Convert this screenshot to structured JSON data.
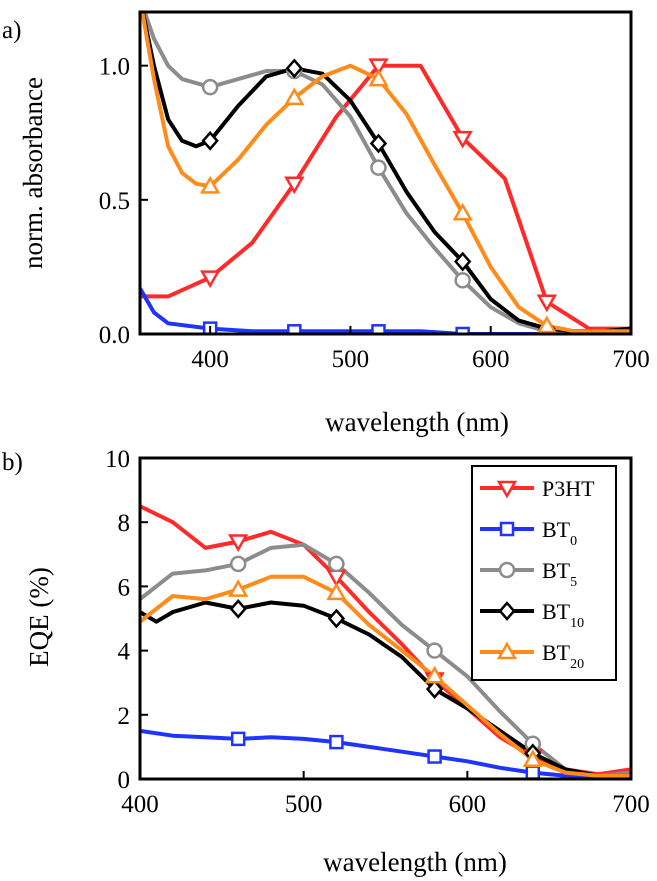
{
  "chart_data": [
    {
      "panel": "a)",
      "type": "line",
      "xlabel": "wavelength (nm)",
      "ylabel": "norm. absorbance",
      "xlim": [
        350,
        700
      ],
      "ylim": [
        0,
        1.2
      ],
      "xticks": [
        400,
        500,
        600,
        700
      ],
      "yticks": [
        0.0,
        0.5,
        1.0
      ],
      "ytick_labels": [
        "0.0",
        "0.5",
        "1.0"
      ],
      "series": [
        {
          "name": "P3HT",
          "color": "#ff2a2a",
          "marker": "triangle-down",
          "x": [
            350,
            370,
            400,
            430,
            460,
            490,
            520,
            550,
            580,
            610,
            640,
            670,
            700
          ],
          "y": [
            0.14,
            0.14,
            0.21,
            0.34,
            0.56,
            0.81,
            1.0,
            1.0,
            0.73,
            0.58,
            0.12,
            0.02,
            0.02
          ]
        },
        {
          "name": "BT0",
          "color": "#1f35ff",
          "marker": "square",
          "x": [
            350,
            360,
            370,
            400,
            430,
            460,
            490,
            520,
            550,
            580,
            610,
            640,
            670,
            700
          ],
          "y": [
            0.17,
            0.08,
            0.04,
            0.02,
            0.01,
            0.01,
            0.01,
            0.01,
            0.01,
            0.0,
            0.0,
            0.0,
            0.01,
            0.01
          ]
        },
        {
          "name": "BT5",
          "color": "#8c8c8c",
          "marker": "circle",
          "x": [
            350,
            360,
            370,
            380,
            400,
            420,
            440,
            460,
            480,
            500,
            520,
            540,
            560,
            580,
            600,
            620,
            640,
            660,
            680,
            700
          ],
          "y": [
            1.25,
            1.1,
            1.0,
            0.95,
            0.92,
            0.95,
            0.98,
            0.98,
            0.93,
            0.81,
            0.62,
            0.45,
            0.32,
            0.2,
            0.1,
            0.04,
            0.01,
            0.01,
            0.01,
            0.02
          ]
        },
        {
          "name": "BT10",
          "color": "#000000",
          "marker": "diamond",
          "x": [
            350,
            360,
            370,
            380,
            390,
            400,
            420,
            440,
            460,
            480,
            500,
            520,
            540,
            560,
            580,
            600,
            620,
            640,
            660,
            680,
            700
          ],
          "y": [
            1.25,
            1.0,
            0.8,
            0.72,
            0.7,
            0.72,
            0.85,
            0.96,
            0.99,
            0.97,
            0.87,
            0.71,
            0.53,
            0.38,
            0.27,
            0.13,
            0.05,
            0.02,
            0.01,
            0.01,
            0.02
          ]
        },
        {
          "name": "BT20",
          "color": "#ff8c1a",
          "marker": "triangle-up",
          "x": [
            350,
            360,
            370,
            380,
            390,
            400,
            420,
            440,
            460,
            480,
            500,
            520,
            540,
            560,
            580,
            600,
            620,
            640,
            660,
            680,
            700
          ],
          "y": [
            1.25,
            0.95,
            0.7,
            0.6,
            0.56,
            0.55,
            0.65,
            0.78,
            0.88,
            0.96,
            1.0,
            0.95,
            0.82,
            0.63,
            0.45,
            0.25,
            0.1,
            0.03,
            0.01,
            0.01,
            0.01
          ]
        }
      ]
    },
    {
      "panel": "b)",
      "type": "line",
      "xlabel": "wavelength (nm)",
      "ylabel": "EQE (%)",
      "xlim": [
        400,
        700
      ],
      "ylim": [
        0,
        10
      ],
      "xticks": [
        400,
        500,
        600,
        700
      ],
      "yticks": [
        0,
        2,
        4,
        6,
        8,
        10
      ],
      "legend": "top-right",
      "series": [
        {
          "name": "P3HT",
          "color": "#ff2a2a",
          "marker": "triangle-down",
          "x": [
            400,
            420,
            440,
            460,
            480,
            500,
            520,
            540,
            560,
            580,
            600,
            620,
            640,
            660,
            680,
            700
          ],
          "y": [
            8.5,
            8.0,
            7.2,
            7.4,
            7.7,
            7.3,
            6.3,
            5.2,
            4.2,
            3.1,
            2.2,
            1.3,
            0.7,
            0.3,
            0.15,
            0.3
          ]
        },
        {
          "name": "BT0",
          "color": "#1f35ff",
          "marker": "square",
          "x": [
            400,
            420,
            440,
            460,
            480,
            500,
            520,
            540,
            560,
            580,
            600,
            620,
            640,
            660,
            680,
            700
          ],
          "y": [
            1.5,
            1.35,
            1.3,
            1.25,
            1.3,
            1.25,
            1.15,
            1.0,
            0.85,
            0.7,
            0.55,
            0.35,
            0.2,
            0.1,
            0.1,
            0.15
          ]
        },
        {
          "name": "BT5",
          "color": "#8c8c8c",
          "marker": "circle",
          "x": [
            400,
            420,
            440,
            460,
            480,
            500,
            520,
            540,
            560,
            580,
            600,
            620,
            640,
            660,
            680,
            700
          ],
          "y": [
            5.6,
            6.4,
            6.5,
            6.7,
            7.2,
            7.3,
            6.7,
            5.8,
            4.8,
            4.0,
            3.2,
            2.1,
            1.1,
            0.3,
            0.1,
            0.2
          ]
        },
        {
          "name": "BT10",
          "color": "#000000",
          "marker": "diamond",
          "x": [
            400,
            410,
            420,
            440,
            460,
            480,
            500,
            520,
            540,
            560,
            580,
            600,
            620,
            640,
            660,
            680,
            700
          ],
          "y": [
            5.2,
            4.9,
            5.2,
            5.5,
            5.3,
            5.5,
            5.4,
            5.0,
            4.5,
            3.8,
            2.8,
            2.2,
            1.5,
            0.8,
            0.3,
            0.1,
            0.1
          ]
        },
        {
          "name": "BT20",
          "color": "#ff8c1a",
          "marker": "triangle-up",
          "x": [
            400,
            420,
            440,
            460,
            480,
            500,
            520,
            540,
            560,
            580,
            600,
            620,
            640,
            660,
            680,
            700
          ],
          "y": [
            4.9,
            5.7,
            5.6,
            5.9,
            6.3,
            6.3,
            5.8,
            4.8,
            4.0,
            3.2,
            2.3,
            1.4,
            0.6,
            0.2,
            0.1,
            0.1
          ]
        }
      ]
    }
  ],
  "legend": {
    "entries": [
      {
        "base": "P3HT",
        "sub": "",
        "color": "#ff2a2a",
        "marker": "triangle-down"
      },
      {
        "base": "BT",
        "sub": "0",
        "color": "#1f35ff",
        "marker": "square"
      },
      {
        "base": "BT",
        "sub": "5",
        "color": "#8c8c8c",
        "marker": "circle"
      },
      {
        "base": "BT",
        "sub": "10",
        "color": "#000000",
        "marker": "diamond"
      },
      {
        "base": "BT",
        "sub": "20",
        "color": "#ff8c1a",
        "marker": "triangle-up"
      }
    ]
  }
}
